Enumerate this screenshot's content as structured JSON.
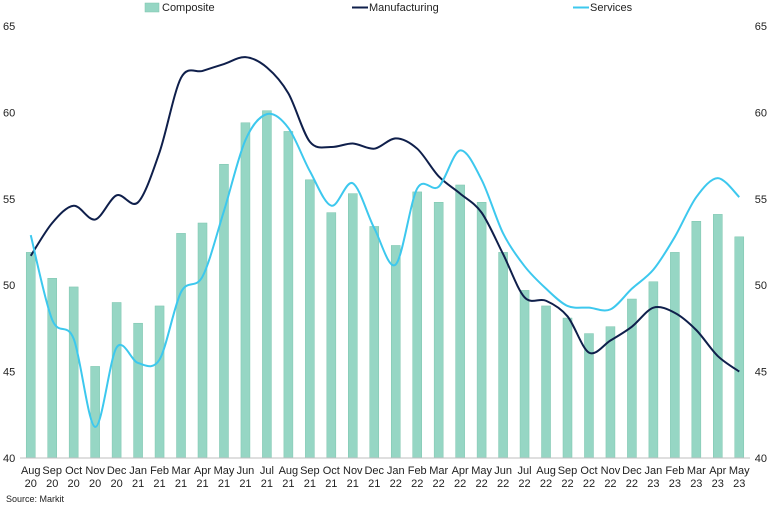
{
  "chart_data": {
    "type": "bar",
    "categories": [
      "Aug 20",
      "Sep 20",
      "Oct 20",
      "Nov 20",
      "Dec 20",
      "Jan 21",
      "Feb 21",
      "Mar 21",
      "Apr 21",
      "May 21",
      "Jun 21",
      "Jul 21",
      "Aug 21",
      "Sep 21",
      "Oct 21",
      "Nov 21",
      "Dec 21",
      "Jan 22",
      "Feb 22",
      "Mar 22",
      "Apr 22",
      "May 22",
      "Jun 22",
      "Jul 22",
      "Aug 22",
      "Sep 22",
      "Oct 22",
      "Nov 22",
      "Dec 22",
      "Jan 23",
      "Feb 23",
      "Mar 23",
      "Apr 23",
      "May 23"
    ],
    "category_lines": [
      [
        "Aug",
        "20"
      ],
      [
        "Sep",
        "20"
      ],
      [
        "Oct",
        "20"
      ],
      [
        "Nov",
        "20"
      ],
      [
        "Dec",
        "20"
      ],
      [
        "Jan",
        "21"
      ],
      [
        "Feb",
        "21"
      ],
      [
        "Mar",
        "21"
      ],
      [
        "Apr",
        "21"
      ],
      [
        "May",
        "21"
      ],
      [
        "Jun",
        "21"
      ],
      [
        "Jul",
        "21"
      ],
      [
        "Aug",
        "21"
      ],
      [
        "Sep",
        "21"
      ],
      [
        "Oct",
        "21"
      ],
      [
        "Nov",
        "21"
      ],
      [
        "Dec",
        "21"
      ],
      [
        "Jan",
        "22"
      ],
      [
        "Feb",
        "22"
      ],
      [
        "Mar",
        "22"
      ],
      [
        "Apr",
        "22"
      ],
      [
        "May",
        "22"
      ],
      [
        "Jun",
        "22"
      ],
      [
        "Jul",
        "22"
      ],
      [
        "Aug",
        "22"
      ],
      [
        "Sep",
        "22"
      ],
      [
        "Oct",
        "22"
      ],
      [
        "Nov",
        "22"
      ],
      [
        "Dec",
        "22"
      ],
      [
        "Jan",
        "23"
      ],
      [
        "Feb",
        "23"
      ],
      [
        "Mar",
        "23"
      ],
      [
        "Apr",
        "23"
      ],
      [
        "May",
        "23"
      ]
    ],
    "series": [
      {
        "name": "Composite",
        "type": "bar",
        "color": "#96d6c4",
        "values": [
          51.9,
          50.4,
          49.9,
          45.3,
          49.0,
          47.8,
          48.8,
          53.0,
          53.6,
          57.0,
          59.4,
          60.1,
          58.9,
          56.1,
          54.2,
          55.3,
          53.4,
          52.3,
          55.4,
          54.8,
          55.8,
          54.8,
          51.9,
          49.7,
          48.8,
          48.1,
          47.2,
          47.6,
          49.2,
          50.2,
          51.9,
          53.7,
          54.1,
          52.8
        ]
      },
      {
        "name": "Manufacturing",
        "type": "line",
        "color": "#0f1f4b",
        "values": [
          51.7,
          53.6,
          54.6,
          53.8,
          55.2,
          54.8,
          57.7,
          62.0,
          62.4,
          62.8,
          63.2,
          62.6,
          61.1,
          58.3,
          58.0,
          58.2,
          57.9,
          58.5,
          57.9,
          56.3,
          55.3,
          54.2,
          51.8,
          49.3,
          49.1,
          48.2,
          46.1,
          46.8,
          47.6,
          48.7,
          48.4,
          47.4,
          45.9,
          45.0
        ]
      },
      {
        "name": "Services",
        "type": "line",
        "color": "#3dc8ee",
        "values": [
          52.9,
          48.0,
          46.9,
          41.8,
          46.4,
          45.5,
          45.7,
          49.6,
          50.5,
          54.3,
          58.4,
          59.9,
          59.1,
          56.6,
          54.6,
          55.9,
          53.3,
          51.2,
          55.6,
          55.7,
          57.8,
          56.1,
          53.0,
          51.1,
          49.8,
          48.8,
          48.7,
          48.6,
          49.8,
          50.9,
          52.8,
          55.1,
          56.2,
          55.1
        ]
      }
    ],
    "ylim": [
      40,
      65
    ],
    "yticks": [
      40,
      45,
      50,
      55,
      60,
      65
    ],
    "y_axis_both_sides": true,
    "grid": false,
    "legend_position": "top",
    "title": "",
    "xlabel": "",
    "ylabel": ""
  },
  "source_text": "Source: Markit"
}
